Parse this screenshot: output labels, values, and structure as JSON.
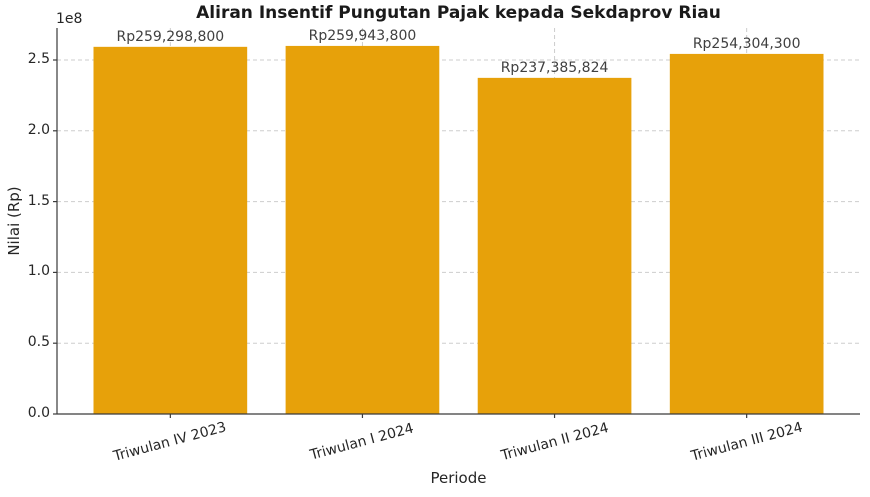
{
  "chart_data": {
    "type": "bar",
    "title": "Aliran Insentif Pungutan Pajak kepada Sekdaprov Riau",
    "xlabel": "Periode",
    "ylabel": "Nilai (Rp)",
    "y_offset_text": "1e8",
    "categories": [
      "Triwulan IV 2023",
      "Triwulan I 2024",
      "Triwulan II 2024",
      "Triwulan III 2024"
    ],
    "values": [
      259298800,
      259943800,
      237385824,
      254304300
    ],
    "bar_labels": [
      "Rp259,298,800",
      "Rp259,943,800",
      "Rp237,385,824",
      "Rp254,304,300"
    ],
    "ylim": [
      0,
      272900000
    ],
    "yticks": [
      0,
      50000000,
      100000000,
      150000000,
      200000000,
      250000000
    ],
    "ytick_labels": [
      "0.0",
      "0.5",
      "1.0",
      "1.5",
      "2.0",
      "2.5"
    ],
    "x_tick_rotation_deg": 15,
    "grid": true,
    "grid_linestyle": "dashed",
    "legend": "none"
  },
  "colors": {
    "bar": "#E7A10A",
    "grid": "#CDCDCD",
    "axis": "#3A3A3A",
    "tick_text": "#262626",
    "value_label_text": "#404040",
    "title_text": "#1A1A1A",
    "background": "#FFFFFF"
  }
}
